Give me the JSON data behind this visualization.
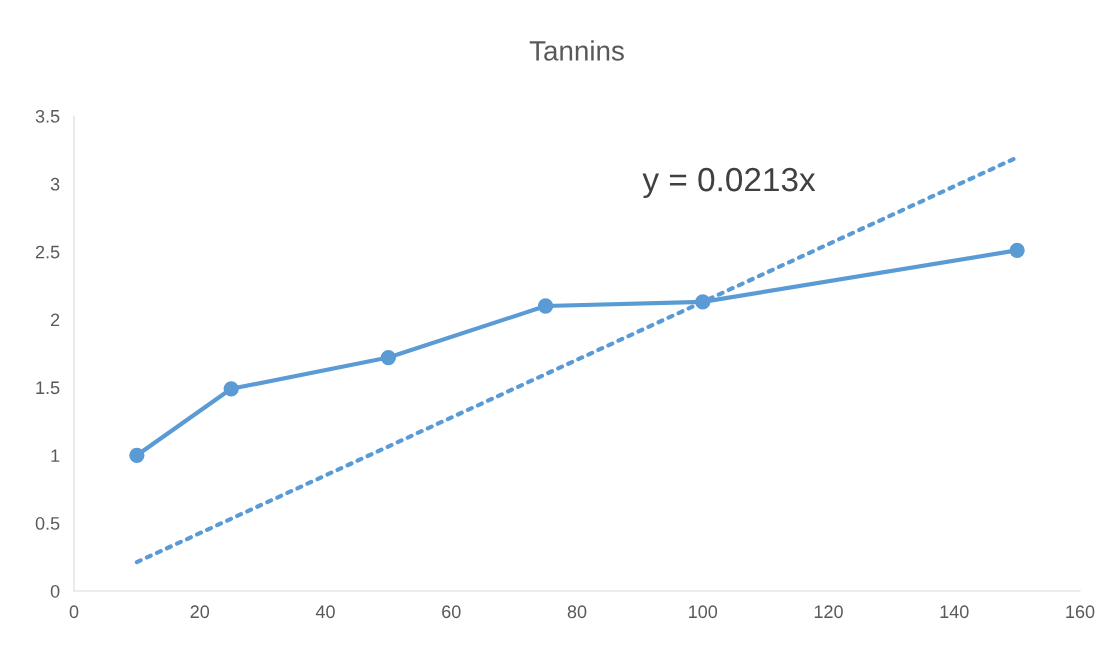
{
  "chart_data": {
    "type": "line",
    "title": "Tannins",
    "x": [
      10,
      25,
      50,
      75,
      100,
      150
    ],
    "series": [
      {
        "color": "#5b9bd5",
        "values": [
          1.0,
          1.49,
          1.72,
          2.1,
          2.13,
          2.51
        ],
        "marker": "circle",
        "line_style": "solid"
      },
      {
        "color": "#5b9bd5",
        "x": [
          10,
          150
        ],
        "values": [
          0.213,
          3.195
        ],
        "marker": "none",
        "line_style": "dotted"
      }
    ],
    "annotations": [
      "y = 0.0213x"
    ],
    "xlim": [
      0,
      160
    ],
    "xticks": [
      0,
      20,
      40,
      60,
      80,
      100,
      120,
      140,
      160
    ],
    "ylim": [
      0,
      3.5
    ],
    "yticks": [
      0,
      0.5,
      1,
      1.5,
      2,
      2.5,
      3,
      3.5
    ],
    "grid": false,
    "legend": false
  }
}
